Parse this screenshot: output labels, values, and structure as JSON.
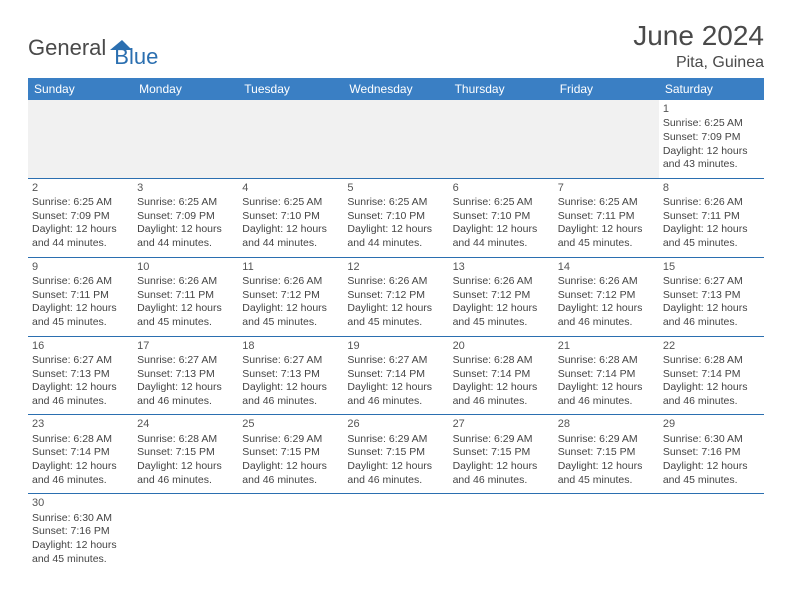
{
  "logo": {
    "part1": "General",
    "part2": "Blue"
  },
  "title": "June 2024",
  "location": "Pita, Guinea",
  "dayHeaders": [
    "Sunday",
    "Monday",
    "Tuesday",
    "Wednesday",
    "Thursday",
    "Friday",
    "Saturday"
  ],
  "colors": {
    "headerBg": "#3a7fc4",
    "headerText": "#ffffff",
    "rule": "#2b6fb0",
    "blankBg": "#f1f1f1",
    "logoBlue": "#2b6fb0",
    "textGray": "#4a4a4a"
  },
  "weeks": [
    [
      null,
      null,
      null,
      null,
      null,
      null,
      {
        "n": "1",
        "sr": "Sunrise: 6:25 AM",
        "ss": "Sunset: 7:09 PM",
        "d1": "Daylight: 12 hours",
        "d2": "and 43 minutes."
      }
    ],
    [
      {
        "n": "2",
        "sr": "Sunrise: 6:25 AM",
        "ss": "Sunset: 7:09 PM",
        "d1": "Daylight: 12 hours",
        "d2": "and 44 minutes."
      },
      {
        "n": "3",
        "sr": "Sunrise: 6:25 AM",
        "ss": "Sunset: 7:09 PM",
        "d1": "Daylight: 12 hours",
        "d2": "and 44 minutes."
      },
      {
        "n": "4",
        "sr": "Sunrise: 6:25 AM",
        "ss": "Sunset: 7:10 PM",
        "d1": "Daylight: 12 hours",
        "d2": "and 44 minutes."
      },
      {
        "n": "5",
        "sr": "Sunrise: 6:25 AM",
        "ss": "Sunset: 7:10 PM",
        "d1": "Daylight: 12 hours",
        "d2": "and 44 minutes."
      },
      {
        "n": "6",
        "sr": "Sunrise: 6:25 AM",
        "ss": "Sunset: 7:10 PM",
        "d1": "Daylight: 12 hours",
        "d2": "and 44 minutes."
      },
      {
        "n": "7",
        "sr": "Sunrise: 6:25 AM",
        "ss": "Sunset: 7:11 PM",
        "d1": "Daylight: 12 hours",
        "d2": "and 45 minutes."
      },
      {
        "n": "8",
        "sr": "Sunrise: 6:26 AM",
        "ss": "Sunset: 7:11 PM",
        "d1": "Daylight: 12 hours",
        "d2": "and 45 minutes."
      }
    ],
    [
      {
        "n": "9",
        "sr": "Sunrise: 6:26 AM",
        "ss": "Sunset: 7:11 PM",
        "d1": "Daylight: 12 hours",
        "d2": "and 45 minutes."
      },
      {
        "n": "10",
        "sr": "Sunrise: 6:26 AM",
        "ss": "Sunset: 7:11 PM",
        "d1": "Daylight: 12 hours",
        "d2": "and 45 minutes."
      },
      {
        "n": "11",
        "sr": "Sunrise: 6:26 AM",
        "ss": "Sunset: 7:12 PM",
        "d1": "Daylight: 12 hours",
        "d2": "and 45 minutes."
      },
      {
        "n": "12",
        "sr": "Sunrise: 6:26 AM",
        "ss": "Sunset: 7:12 PM",
        "d1": "Daylight: 12 hours",
        "d2": "and 45 minutes."
      },
      {
        "n": "13",
        "sr": "Sunrise: 6:26 AM",
        "ss": "Sunset: 7:12 PM",
        "d1": "Daylight: 12 hours",
        "d2": "and 45 minutes."
      },
      {
        "n": "14",
        "sr": "Sunrise: 6:26 AM",
        "ss": "Sunset: 7:12 PM",
        "d1": "Daylight: 12 hours",
        "d2": "and 46 minutes."
      },
      {
        "n": "15",
        "sr": "Sunrise: 6:27 AM",
        "ss": "Sunset: 7:13 PM",
        "d1": "Daylight: 12 hours",
        "d2": "and 46 minutes."
      }
    ],
    [
      {
        "n": "16",
        "sr": "Sunrise: 6:27 AM",
        "ss": "Sunset: 7:13 PM",
        "d1": "Daylight: 12 hours",
        "d2": "and 46 minutes."
      },
      {
        "n": "17",
        "sr": "Sunrise: 6:27 AM",
        "ss": "Sunset: 7:13 PM",
        "d1": "Daylight: 12 hours",
        "d2": "and 46 minutes."
      },
      {
        "n": "18",
        "sr": "Sunrise: 6:27 AM",
        "ss": "Sunset: 7:13 PM",
        "d1": "Daylight: 12 hours",
        "d2": "and 46 minutes."
      },
      {
        "n": "19",
        "sr": "Sunrise: 6:27 AM",
        "ss": "Sunset: 7:14 PM",
        "d1": "Daylight: 12 hours",
        "d2": "and 46 minutes."
      },
      {
        "n": "20",
        "sr": "Sunrise: 6:28 AM",
        "ss": "Sunset: 7:14 PM",
        "d1": "Daylight: 12 hours",
        "d2": "and 46 minutes."
      },
      {
        "n": "21",
        "sr": "Sunrise: 6:28 AM",
        "ss": "Sunset: 7:14 PM",
        "d1": "Daylight: 12 hours",
        "d2": "and 46 minutes."
      },
      {
        "n": "22",
        "sr": "Sunrise: 6:28 AM",
        "ss": "Sunset: 7:14 PM",
        "d1": "Daylight: 12 hours",
        "d2": "and 46 minutes."
      }
    ],
    [
      {
        "n": "23",
        "sr": "Sunrise: 6:28 AM",
        "ss": "Sunset: 7:14 PM",
        "d1": "Daylight: 12 hours",
        "d2": "and 46 minutes."
      },
      {
        "n": "24",
        "sr": "Sunrise: 6:28 AM",
        "ss": "Sunset: 7:15 PM",
        "d1": "Daylight: 12 hours",
        "d2": "and 46 minutes."
      },
      {
        "n": "25",
        "sr": "Sunrise: 6:29 AM",
        "ss": "Sunset: 7:15 PM",
        "d1": "Daylight: 12 hours",
        "d2": "and 46 minutes."
      },
      {
        "n": "26",
        "sr": "Sunrise: 6:29 AM",
        "ss": "Sunset: 7:15 PM",
        "d1": "Daylight: 12 hours",
        "d2": "and 46 minutes."
      },
      {
        "n": "27",
        "sr": "Sunrise: 6:29 AM",
        "ss": "Sunset: 7:15 PM",
        "d1": "Daylight: 12 hours",
        "d2": "and 46 minutes."
      },
      {
        "n": "28",
        "sr": "Sunrise: 6:29 AM",
        "ss": "Sunset: 7:15 PM",
        "d1": "Daylight: 12 hours",
        "d2": "and 45 minutes."
      },
      {
        "n": "29",
        "sr": "Sunrise: 6:30 AM",
        "ss": "Sunset: 7:16 PM",
        "d1": "Daylight: 12 hours",
        "d2": "and 45 minutes."
      }
    ],
    [
      {
        "n": "30",
        "sr": "Sunrise: 6:30 AM",
        "ss": "Sunset: 7:16 PM",
        "d1": "Daylight: 12 hours",
        "d2": "and 45 minutes."
      },
      null,
      null,
      null,
      null,
      null,
      null
    ]
  ]
}
